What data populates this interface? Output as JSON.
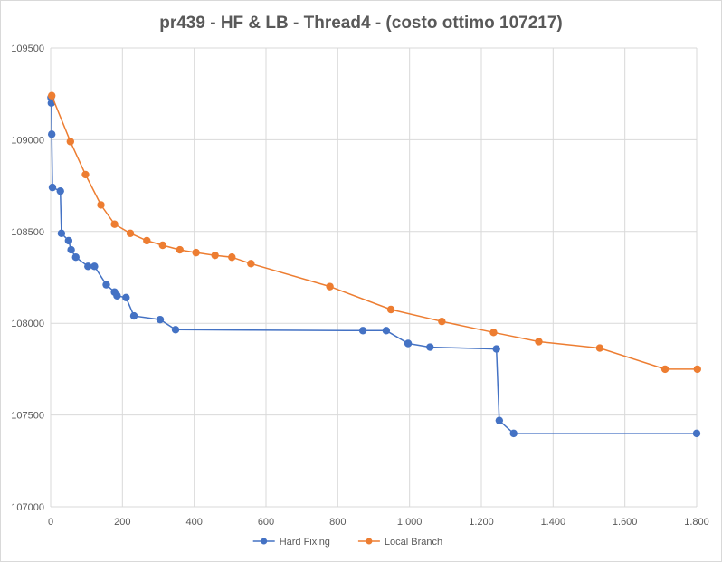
{
  "chart_data": {
    "type": "scatter",
    "title": "pr439 - HF & LB - Thread4 - (costo ottimo 107217)",
    "xlabel": "",
    "ylabel": "",
    "xlim": [
      0,
      1800
    ],
    "ylim": [
      107000,
      109500
    ],
    "x_ticks": [
      0,
      200,
      400,
      600,
      800,
      1000,
      1200,
      1400,
      1600,
      1800
    ],
    "x_tick_labels": [
      "0",
      "200",
      "400",
      "600",
      "800",
      "1.000",
      "1.200",
      "1.400",
      "1.600",
      "1.800"
    ],
    "y_ticks": [
      107000,
      107500,
      108000,
      108500,
      109000,
      109500
    ],
    "y_tick_labels": [
      "107000",
      "107500",
      "108000",
      "108500",
      "109000",
      "109500"
    ],
    "grid": "on",
    "legend_position": "bottom",
    "series": [
      {
        "name": "Hard Fixing",
        "color": "#4472c4",
        "points": [
          [
            1,
            109230
          ],
          [
            2,
            109200
          ],
          [
            3,
            109030
          ],
          [
            5,
            108740
          ],
          [
            27,
            108720
          ],
          [
            30,
            108490
          ],
          [
            50,
            108450
          ],
          [
            57,
            108400
          ],
          [
            70,
            108360
          ],
          [
            104,
            108310
          ],
          [
            122,
            108310
          ],
          [
            155,
            108210
          ],
          [
            178,
            108170
          ],
          [
            185,
            108150
          ],
          [
            210,
            108140
          ],
          [
            232,
            108040
          ],
          [
            305,
            108020
          ],
          [
            348,
            107965
          ],
          [
            870,
            107960
          ],
          [
            935,
            107960
          ],
          [
            996,
            107890
          ],
          [
            1057,
            107870
          ],
          [
            1242,
            107860
          ],
          [
            1250,
            107470
          ],
          [
            1290,
            107400
          ],
          [
            1800,
            107400
          ]
        ]
      },
      {
        "name": "Local Branch",
        "color": "#ed7d31",
        "points": [
          [
            3,
            109240
          ],
          [
            55,
            108990
          ],
          [
            97,
            108810
          ],
          [
            140,
            108645
          ],
          [
            178,
            108540
          ],
          [
            222,
            108490
          ],
          [
            268,
            108450
          ],
          [
            312,
            108425
          ],
          [
            360,
            108400
          ],
          [
            405,
            108385
          ],
          [
            458,
            108370
          ],
          [
            505,
            108360
          ],
          [
            558,
            108325
          ],
          [
            778,
            108200
          ],
          [
            948,
            108075
          ],
          [
            1090,
            108010
          ],
          [
            1234,
            107950
          ],
          [
            1360,
            107900
          ],
          [
            1530,
            107865
          ],
          [
            1712,
            107750
          ],
          [
            1802,
            107750
          ]
        ]
      }
    ]
  }
}
